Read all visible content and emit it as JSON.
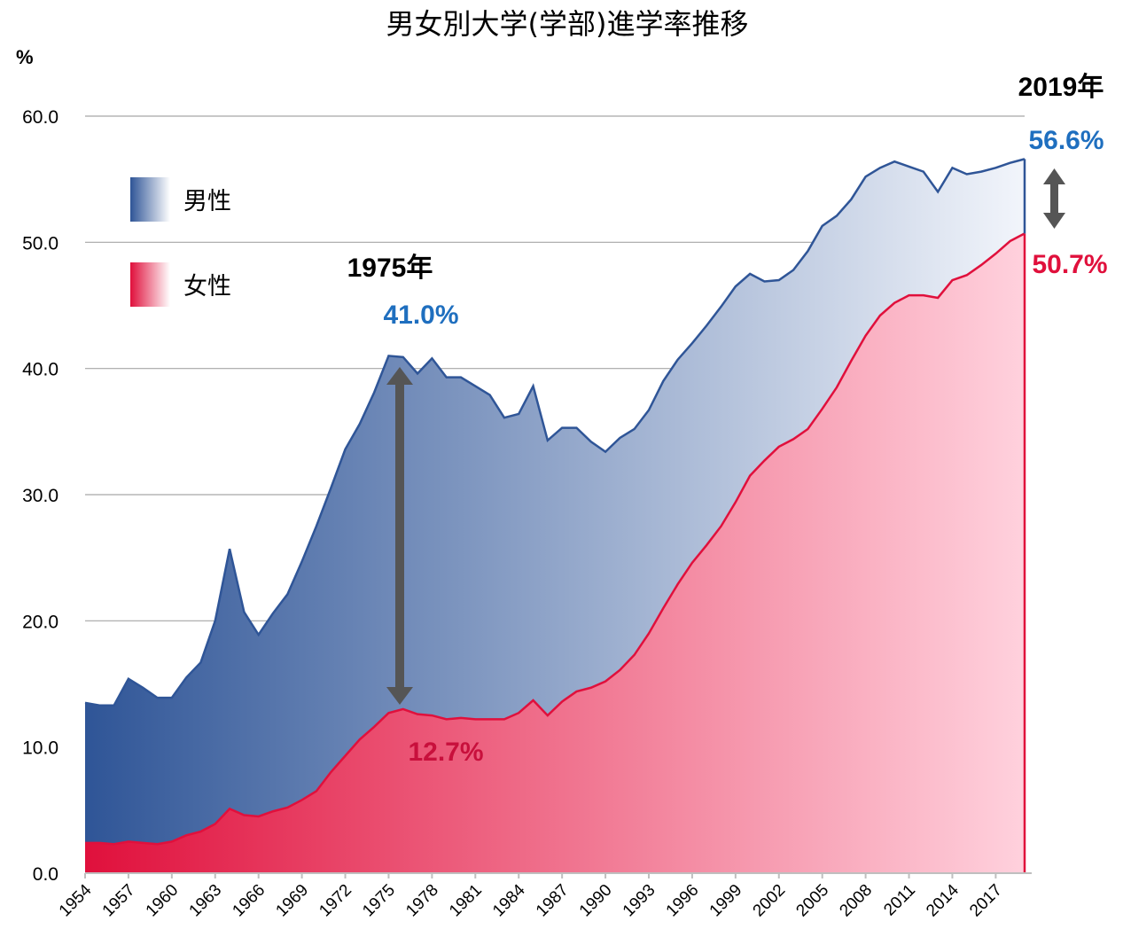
{
  "chart_data": {
    "type": "area",
    "title": "男女別大学(学部)進学率推移",
    "y_unit": "%",
    "x": [
      1954,
      1955,
      1956,
      1957,
      1958,
      1959,
      1960,
      1961,
      1962,
      1963,
      1964,
      1965,
      1966,
      1967,
      1968,
      1969,
      1970,
      1971,
      1972,
      1973,
      1974,
      1975,
      1976,
      1977,
      1978,
      1979,
      1980,
      1981,
      1982,
      1983,
      1984,
      1985,
      1986,
      1987,
      1988,
      1989,
      1990,
      1991,
      1992,
      1993,
      1994,
      1995,
      1996,
      1997,
      1998,
      1999,
      2000,
      2001,
      2002,
      2003,
      2004,
      2005,
      2006,
      2007,
      2008,
      2009,
      2010,
      2011,
      2012,
      2013,
      2014,
      2015,
      2016,
      2017,
      2018,
      2019
    ],
    "series": [
      {
        "name": "男性",
        "color": "#2f5597",
        "values": [
          13.5,
          13.3,
          13.3,
          15.4,
          14.7,
          13.9,
          13.9,
          15.5,
          16.7,
          20.0,
          25.7,
          20.7,
          18.9,
          20.6,
          22.1,
          24.7,
          27.5,
          30.5,
          33.6,
          35.6,
          38.1,
          41.0,
          40.9,
          39.6,
          40.8,
          39.3,
          39.3,
          38.6,
          37.9,
          36.1,
          36.4,
          38.6,
          34.3,
          35.3,
          35.3,
          34.2,
          33.4,
          34.5,
          35.2,
          36.7,
          39.0,
          40.7,
          42.0,
          43.4,
          44.9,
          46.5,
          47.5,
          46.9,
          47.0,
          47.8,
          49.3,
          51.3,
          52.1,
          53.4,
          55.2,
          55.9,
          56.4,
          56.0,
          55.6,
          54.0,
          55.9,
          55.4,
          55.6,
          55.9,
          56.3,
          56.6
        ]
      },
      {
        "name": "女性",
        "color": "#e0103c",
        "values": [
          2.4,
          2.4,
          2.3,
          2.5,
          2.4,
          2.3,
          2.5,
          3.0,
          3.3,
          3.9,
          5.1,
          4.6,
          4.5,
          4.9,
          5.2,
          5.8,
          6.5,
          8.0,
          9.3,
          10.6,
          11.6,
          12.7,
          13.0,
          12.6,
          12.5,
          12.2,
          12.3,
          12.2,
          12.2,
          12.2,
          12.7,
          13.7,
          12.5,
          13.6,
          14.4,
          14.7,
          15.2,
          16.1,
          17.3,
          19.0,
          21.0,
          22.9,
          24.6,
          26.0,
          27.5,
          29.4,
          31.5,
          32.7,
          33.8,
          34.4,
          35.2,
          36.8,
          38.5,
          40.6,
          42.6,
          44.2,
          45.2,
          45.8,
          45.8,
          45.6,
          47.0,
          47.4,
          48.2,
          49.1,
          50.1,
          50.7
        ]
      }
    ],
    "xlim": [
      1954,
      2019
    ],
    "xticks": [
      1954,
      1957,
      1960,
      1963,
      1966,
      1969,
      1972,
      1975,
      1978,
      1981,
      1984,
      1987,
      1990,
      1993,
      1996,
      1999,
      2002,
      2005,
      2008,
      2011,
      2014,
      2017
    ],
    "ylim": [
      0,
      60
    ],
    "yticks": [
      {
        "value": 0,
        "label": "0.0"
      },
      {
        "value": 10,
        "label": "10.0"
      },
      {
        "value": 20,
        "label": "20.0"
      },
      {
        "value": 30,
        "label": "30.0"
      },
      {
        "value": 40,
        "label": "40.0"
      },
      {
        "value": 50,
        "label": "50.0"
      },
      {
        "value": 60,
        "label": "60.0"
      }
    ],
    "grid": true,
    "annotations": [
      {
        "text": "1975年",
        "color": "#000000"
      },
      {
        "text": "41.0%",
        "color": "#1f6fbf"
      },
      {
        "text": "12.7%",
        "color": "#c8103c"
      },
      {
        "text": "2019年",
        "color": "#000000"
      },
      {
        "text": "56.6%",
        "color": "#1f6fbf"
      },
      {
        "text": "50.7%",
        "color": "#e0103c"
      }
    ]
  }
}
